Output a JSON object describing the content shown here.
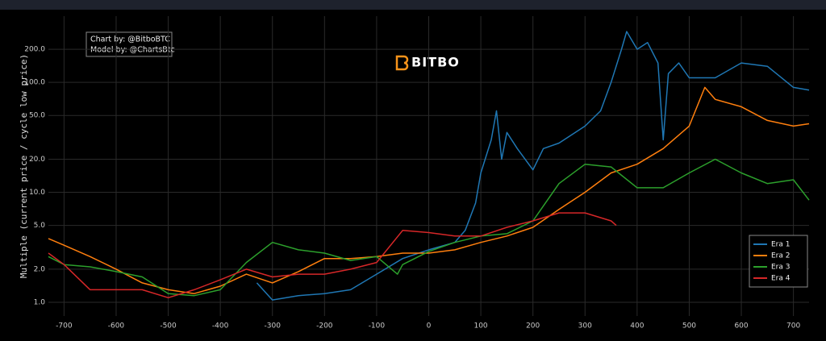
{
  "chart_data": {
    "type": "line",
    "log_y": true,
    "grid": true,
    "legend_position": "lower right",
    "y_label": "Multiple (current price / cycle low price)",
    "annotations": [
      "Chart by: @BitboBTC",
      "Model by: @ChartsBtc"
    ],
    "logo": "BITBO",
    "xlim": [
      -730,
      730
    ],
    "xticks": [
      -700,
      -600,
      -500,
      -400,
      -300,
      -200,
      -100,
      0,
      100,
      200,
      300,
      400,
      500,
      600,
      700
    ],
    "ylim": [
      0.75,
      400
    ],
    "yticks": [
      {
        "value": 1,
        "label": "1.0"
      },
      {
        "value": 2,
        "label": "2.0"
      },
      {
        "value": 5,
        "label": "5.0"
      },
      {
        "value": 10,
        "label": "10.0"
      },
      {
        "value": 20,
        "label": "20.0"
      },
      {
        "value": 50,
        "label": "50.0"
      },
      {
        "value": 100,
        "label": "100.0"
      },
      {
        "value": 200,
        "label": "200.0"
      }
    ],
    "series": [
      {
        "name": "Era 1",
        "color": "#1f77b4",
        "x": [
          -330,
          -300,
          -250,
          -200,
          -150,
          -100,
          -50,
          0,
          50,
          70,
          90,
          100,
          120,
          130,
          140,
          150,
          170,
          200,
          220,
          250,
          300,
          330,
          350,
          370,
          380,
          400,
          420,
          440,
          450,
          460,
          480,
          500,
          550,
          600,
          650,
          700,
          730
        ],
        "values": [
          1.5,
          1.05,
          1.15,
          1.2,
          1.3,
          1.8,
          2.5,
          3,
          3.5,
          4.5,
          8,
          15,
          30,
          55,
          20,
          35,
          25,
          16,
          25,
          28,
          40,
          55,
          100,
          200,
          290,
          200,
          230,
          150,
          30,
          120,
          150,
          110,
          110,
          150,
          140,
          90,
          85
        ]
      },
      {
        "name": "Era 2",
        "color": "#ff7f0e",
        "x": [
          -730,
          -700,
          -650,
          -600,
          -550,
          -500,
          -450,
          -400,
          -350,
          -300,
          -250,
          -200,
          -150,
          -100,
          -50,
          0,
          50,
          100,
          150,
          200,
          250,
          300,
          350,
          400,
          450,
          500,
          530,
          550,
          600,
          650,
          700,
          730
        ],
        "values": [
          3.8,
          3.3,
          2.6,
          2.0,
          1.5,
          1.3,
          1.2,
          1.4,
          1.8,
          1.5,
          1.9,
          2.5,
          2.5,
          2.6,
          2.8,
          2.8,
          3.0,
          3.5,
          4.0,
          4.8,
          7,
          10,
          15,
          18,
          25,
          40,
          90,
          70,
          60,
          45,
          40,
          42
        ]
      },
      {
        "name": "Era 3",
        "color": "#2ca02c",
        "x": [
          -730,
          -700,
          -650,
          -600,
          -550,
          -500,
          -450,
          -400,
          -350,
          -300,
          -250,
          -200,
          -150,
          -100,
          -60,
          -50,
          0,
          50,
          100,
          150,
          200,
          250,
          300,
          350,
          400,
          450,
          500,
          550,
          600,
          650,
          700,
          730
        ],
        "values": [
          2.6,
          2.2,
          2.1,
          1.9,
          1.7,
          1.2,
          1.15,
          1.3,
          2.3,
          3.5,
          3.0,
          2.8,
          2.4,
          2.6,
          1.8,
          2.2,
          2.9,
          3.5,
          4,
          4.2,
          5.5,
          12,
          18,
          17,
          11,
          11,
          15,
          20,
          15,
          12,
          13,
          8.5
        ]
      },
      {
        "name": "Era 4",
        "color": "#d62728",
        "x": [
          -730,
          -700,
          -650,
          -600,
          -550,
          -500,
          -450,
          -400,
          -350,
          -300,
          -250,
          -200,
          -150,
          -100,
          -50,
          0,
          50,
          100,
          150,
          200,
          250,
          300,
          350,
          360
        ],
        "values": [
          2.8,
          2.2,
          1.3,
          1.3,
          1.3,
          1.1,
          1.3,
          1.6,
          2.0,
          1.7,
          1.8,
          1.8,
          2.0,
          2.3,
          4.5,
          4.3,
          4.0,
          4.0,
          4.8,
          5.5,
          6.5,
          6.5,
          5.5,
          5.0
        ]
      }
    ]
  }
}
